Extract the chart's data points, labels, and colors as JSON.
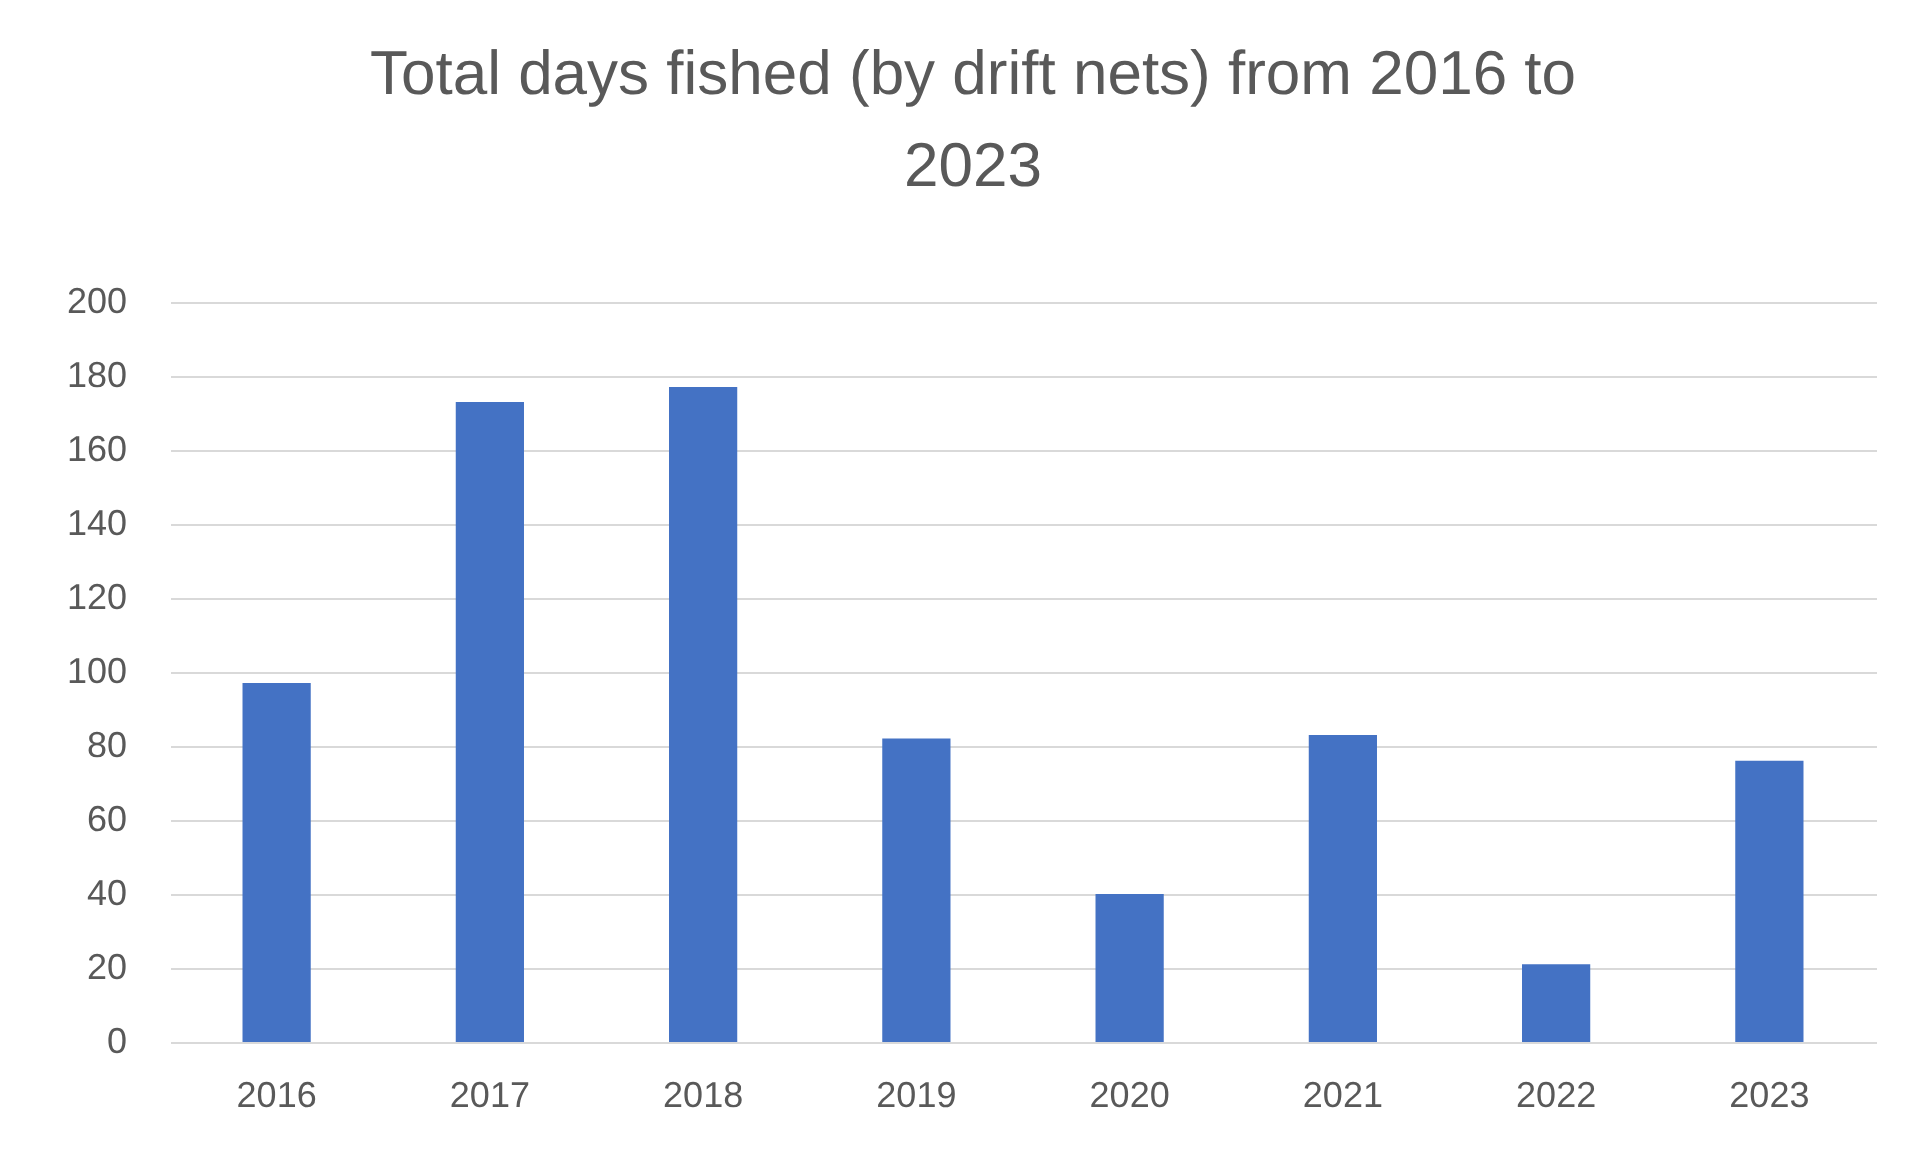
{
  "chart_data": {
    "type": "bar",
    "title": "Total days fished (by drift nets) from 2016 to 2023",
    "categories": [
      "2016",
      "2017",
      "2018",
      "2019",
      "2020",
      "2021",
      "2022",
      "2023"
    ],
    "values": [
      97,
      173,
      177,
      82,
      40,
      83,
      21,
      76
    ],
    "color": "#4472c4",
    "ylim": [
      0,
      200
    ],
    "yticks": [
      0,
      20,
      40,
      60,
      80,
      100,
      120,
      140,
      160,
      180,
      200
    ],
    "grid": "y"
  }
}
